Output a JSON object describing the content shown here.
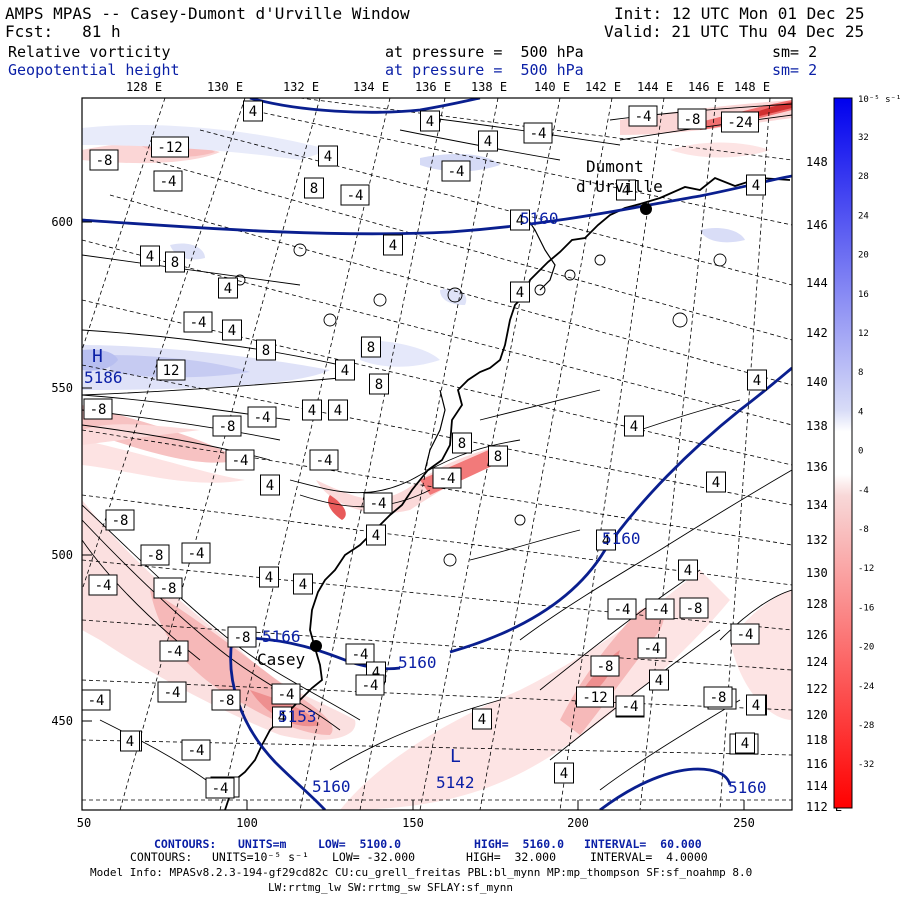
{
  "header": {
    "title": "AMPS MPAS -- Casey-Dumont d'Urville Window",
    "init": "Init: 12 UTC Mon 01 Dec 25",
    "fcst": "Fcst:   81 h",
    "valid": "Valid: 21 UTC Thu 04 Dec 25",
    "field1_name": "Relative vorticity",
    "field1_level": "at pressure =  500 hPa",
    "field1_sm": "sm= 2",
    "field2_name": "Geopotential height",
    "field2_level": "at pressure =  500 hPa",
    "field2_sm": "sm= 2"
  },
  "axes": {
    "top_lon": [
      "128 E",
      "130 E",
      "132 E",
      "134 E",
      "136 E",
      "138 E",
      "140 E",
      "142 E",
      "144 E",
      "146 E",
      "148 E"
    ],
    "right_lon": [
      "148 E",
      "146 E",
      "144 E",
      "142 E",
      "140 E",
      "138 E",
      "136 E",
      "134 E",
      "132 E",
      "130 E",
      "128 E",
      "126 E",
      "124 E",
      "122 E",
      "120 E",
      "118 E",
      "116 E",
      "114 E",
      "112 E"
    ],
    "x_ticks": [
      "50",
      "100",
      "150",
      "200",
      "250"
    ],
    "y_ticks": [
      "600",
      "550",
      "500",
      "450"
    ]
  },
  "colorbar": {
    "unit": "10⁻⁵ s⁻¹",
    "labels": [
      "32",
      "28",
      "24",
      "20",
      "16",
      "12",
      "8",
      "4",
      "0",
      "-4",
      "-8",
      "-12",
      "-16",
      "-20",
      "-24",
      "-28",
      "-32"
    ]
  },
  "places": {
    "dumont1": "Dumont",
    "dumont2": "d'Urville",
    "casey": "Casey"
  },
  "height_labels": {
    "h": "H",
    "h_val": "5186",
    "casey_val": "5166",
    "l_val1": "5153",
    "l": "L",
    "l_val2": "5142",
    "c1": "5160",
    "c2": "5160",
    "c3": "5160",
    "c4": "5160",
    "c5": "5160"
  },
  "vort_boxes": [
    {
      "t": "-8"
    },
    {
      "t": "-12"
    },
    {
      "t": "-4"
    },
    {
      "t": "4"
    },
    {
      "t": "8"
    },
    {
      "t": "-4"
    },
    {
      "t": "4"
    },
    {
      "t": "4"
    },
    {
      "t": "-4"
    },
    {
      "t": "4"
    },
    {
      "t": "-4"
    },
    {
      "t": "-4"
    },
    {
      "t": "-8"
    },
    {
      "t": "-24"
    },
    {
      "t": "4"
    },
    {
      "t": "4"
    },
    {
      "t": "4"
    },
    {
      "t": "4"
    },
    {
      "t": "8"
    },
    {
      "t": "4"
    },
    {
      "t": "4"
    },
    {
      "t": "-4"
    },
    {
      "t": "4"
    },
    {
      "t": "8"
    },
    {
      "t": "8"
    },
    {
      "t": "12"
    },
    {
      "t": "4"
    },
    {
      "t": "8"
    },
    {
      "t": "-8"
    },
    {
      "t": "-4"
    },
    {
      "t": "-8"
    },
    {
      "t": "4"
    },
    {
      "t": "4"
    },
    {
      "t": "-4"
    },
    {
      "t": "-4"
    },
    {
      "t": "4"
    },
    {
      "t": "8"
    },
    {
      "t": "8"
    },
    {
      "t": "-4"
    },
    {
      "t": "-4"
    },
    {
      "t": "-8"
    },
    {
      "t": "4"
    },
    {
      "t": "4"
    },
    {
      "t": "-8"
    },
    {
      "t": "-8"
    },
    {
      "t": "-4"
    },
    {
      "t": "4"
    },
    {
      "t": "-4"
    },
    {
      "t": "4"
    },
    {
      "t": "-8"
    },
    {
      "t": "-4"
    },
    {
      "t": "-8"
    },
    {
      "t": "-4"
    },
    {
      "t": "-4"
    },
    {
      "t": "-4"
    },
    {
      "t": "4"
    },
    {
      "t": "-4"
    },
    {
      "t": "4"
    },
    {
      "t": "4"
    },
    {
      "t": "-4"
    },
    {
      "t": "-4"
    },
    {
      "t": "-4"
    },
    {
      "t": "-8"
    },
    {
      "t": "4"
    },
    {
      "t": "-4"
    },
    {
      "t": "-4"
    },
    {
      "t": "-8"
    },
    {
      "t": "-12"
    },
    {
      "t": "4"
    },
    {
      "t": "-8"
    },
    {
      "t": "4"
    },
    {
      "t": "-4"
    },
    {
      "t": "-4"
    },
    {
      "t": "4"
    },
    {
      "t": "4"
    },
    {
      "t": "-4"
    },
    {
      "t": "4"
    },
    {
      "t": "-4"
    },
    {
      "t": "-4"
    },
    {
      "t": "4"
    },
    {
      "t": "-4"
    },
    {
      "t": "-8"
    },
    {
      "t": "4"
    },
    {
      "t": "4"
    },
    {
      "t": "4"
    },
    {
      "t": "4"
    },
    {
      "t": "4"
    }
  ],
  "footer": {
    "c1_label": "CONTOURS:",
    "c1_units": "UNITS=m",
    "c1_low": "LOW=  5100.0",
    "c1_high": "HIGH=  5160.0",
    "c1_int": "INTERVAL=  60.000",
    "c2_label": "CONTOURS:",
    "c2_units": "UNITS=10⁻⁵ s⁻¹",
    "c2_low": "LOW= -32.000",
    "c2_high": "HIGH=  32.000",
    "c2_int": "INTERVAL=  4.0000",
    "model1": "Model Info: MPASv8.2.3-194-gf29cd82c CU:cu_grell_freitas PBL:bl_mynn MP:mp_thompson SF:sf_noahmp 8.0",
    "model2": "LW:rrtmg_lw SW:rrtmg_sw SFLAY:sf_mynn"
  }
}
